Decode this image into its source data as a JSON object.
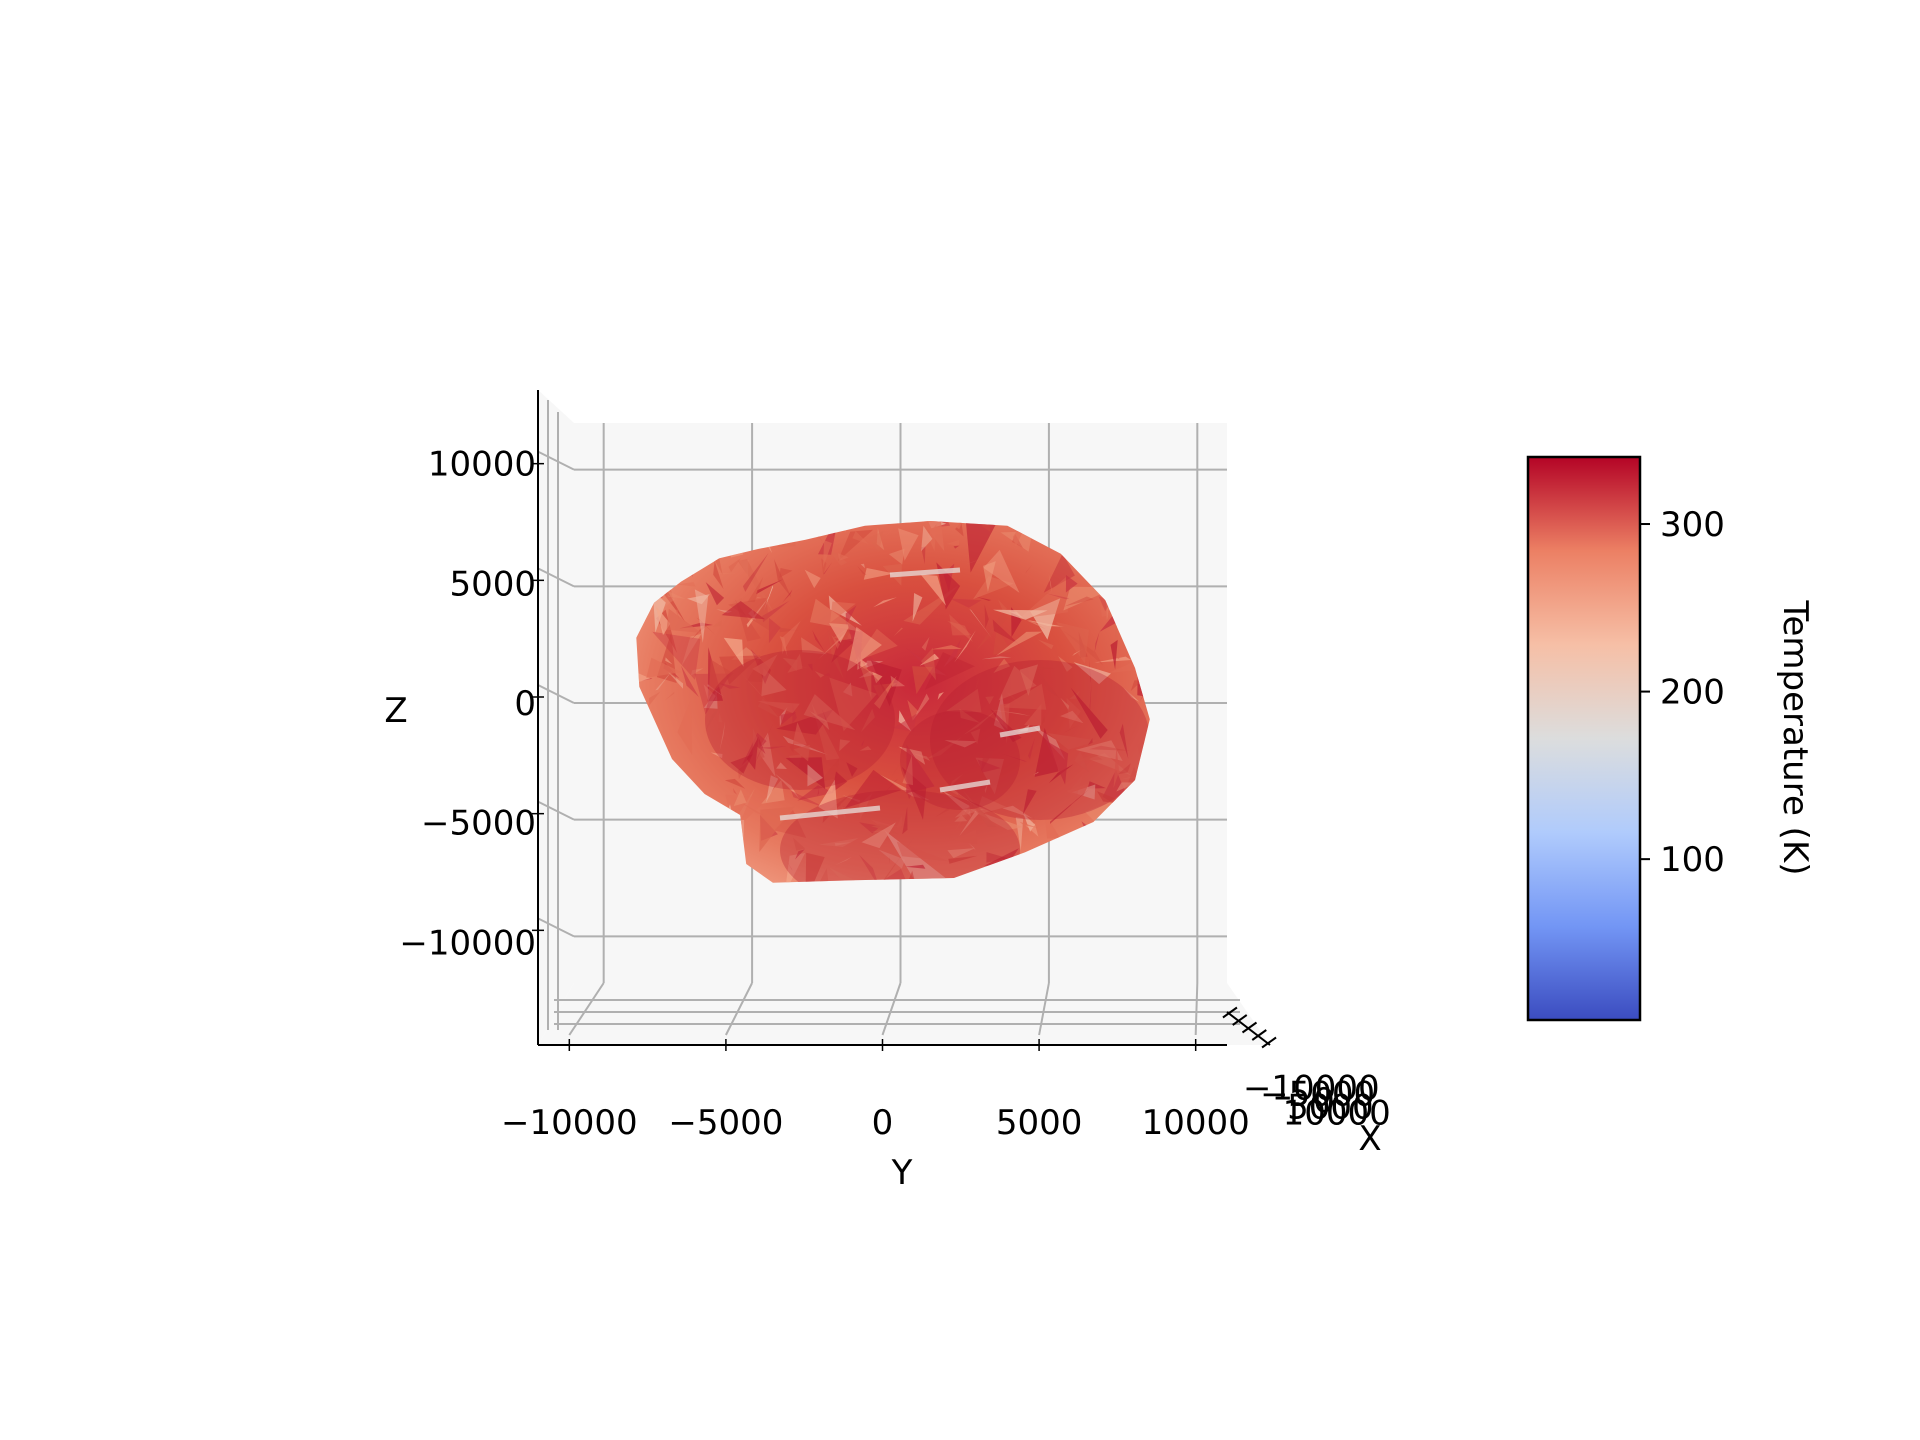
{
  "chart_data": {
    "type": "surface3d",
    "title": "",
    "axes": {
      "x": {
        "label": "X",
        "ticks": [
          -10000,
          -5000,
          0,
          5000,
          10000
        ],
        "tick_labels": [
          "−10000",
          "−5000",
          "0",
          "5000",
          "10000"
        ],
        "lim": [
          -11000,
          11000
        ]
      },
      "y": {
        "label": "Y",
        "ticks": [
          -10000,
          -5000,
          0,
          5000,
          10000
        ],
        "tick_labels": [
          "−10000",
          "−5000",
          "0",
          "5000",
          "10000"
        ],
        "lim": [
          -11000,
          11000
        ]
      },
      "z": {
        "label": "Z",
        "ticks": [
          -10000,
          -5000,
          0,
          5000,
          10000
        ],
        "tick_labels": [
          "−10000",
          "−5000",
          "0",
          "5000",
          "10000"
        ],
        "lim": [
          -12000,
          12000
        ]
      }
    },
    "view": {
      "elev": 0,
      "azim": 0
    },
    "grid": true,
    "object": {
      "description_shape": "irregular comet nucleus mesh",
      "outline_yz": [
        [
          -7400,
          5200
        ],
        [
          -6100,
          6200
        ],
        [
          -4800,
          6600
        ],
        [
          -3200,
          7000
        ],
        [
          -1200,
          7600
        ],
        [
          1000,
          7800
        ],
        [
          3600,
          7600
        ],
        [
          5400,
          6400
        ],
        [
          6900,
          4400
        ],
        [
          7900,
          1500
        ],
        [
          8400,
          -700
        ],
        [
          7900,
          -3300
        ],
        [
          6500,
          -5100
        ],
        [
          4200,
          -6400
        ],
        [
          1800,
          -7500
        ],
        [
          -1600,
          -7600
        ],
        [
          -4300,
          -7700
        ],
        [
          -5200,
          -6900
        ],
        [
          -5400,
          -4800
        ],
        [
          -6600,
          -3900
        ],
        [
          -7700,
          -2400
        ],
        [
          -8800,
          700
        ],
        [
          -8900,
          2800
        ],
        [
          -8300,
          4300
        ]
      ],
      "temperature_range_on_surface": [
        230,
        335
      ]
    },
    "colorbar": {
      "label": "Temperature (K)",
      "cmap": "coolwarm",
      "vmin": 4,
      "vmax": 340,
      "ticks": [
        100,
        200,
        300
      ],
      "tick_labels": [
        "100",
        "200",
        "300"
      ]
    },
    "colors": {
      "pane": "#f7f7f7",
      "grid": "#b0b0b0",
      "cmap_stops": [
        "#3b4cc0",
        "#7396f5",
        "#b0cbfc",
        "#dcdddd",
        "#f6bfa6",
        "#ec8064",
        "#b40426"
      ]
    }
  }
}
